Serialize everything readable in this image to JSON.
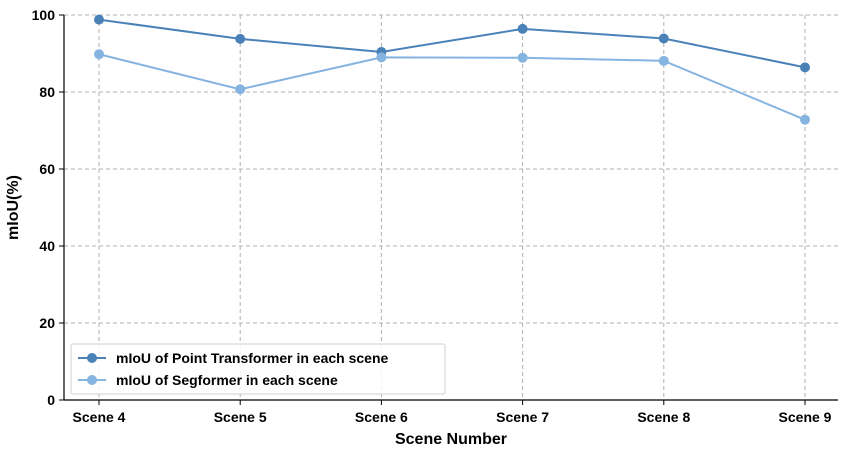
{
  "chart_data": {
    "type": "line",
    "categories": [
      "Scene 4",
      "Scene 5",
      "Scene 6",
      "Scene 7",
      "Scene 8",
      "Scene 9"
    ],
    "series": [
      {
        "name": "mIoU of Point Transformer in each scene",
        "values": [
          98.8,
          93.8,
          90.4,
          96.4,
          93.9,
          86.4
        ],
        "color": "#4a82b8"
      },
      {
        "name": "mIoU of Segformer in each scene",
        "values": [
          89.8,
          80.7,
          89.0,
          88.9,
          88.1,
          72.8
        ],
        "color": "#86b4e0"
      }
    ],
    "xlabel": "Scene Number",
    "ylabel": "mIoU(%)",
    "ylim": [
      0,
      100
    ],
    "yticks": [
      0,
      20,
      40,
      60,
      80,
      100
    ],
    "grid": true,
    "legend_position": "lower-left"
  }
}
